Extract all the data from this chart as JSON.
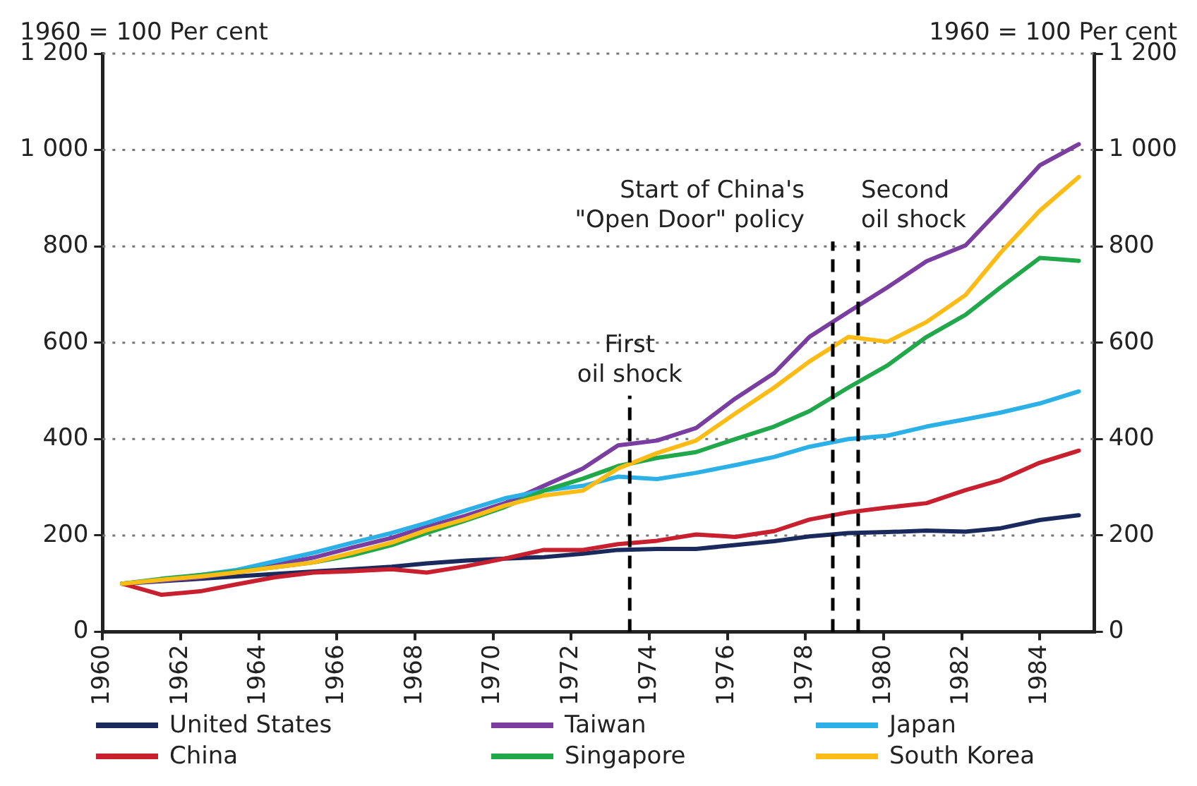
{
  "chart_data": {
    "type": "line",
    "ylabel": "1960 = 100 Per cent",
    "y2label": "1960 = 100 Per cent",
    "x": [
      1960.5,
      1961.5,
      1962.5,
      1963.4,
      1964.4,
      1965.4,
      1966.4,
      1967.4,
      1968.3,
      1969.3,
      1970.3,
      1971.3,
      1972.3,
      1973.2,
      1974.2,
      1975.2,
      1976.2,
      1977.2,
      1978.1,
      1979.1,
      1980.1,
      1981.1,
      1982.1,
      1983.0,
      1984.0,
      1985.0
    ],
    "series": [
      {
        "name": "United States",
        "color": "#1b2a5c",
        "values": [
          100,
          105,
          110,
          115,
          120,
          125,
          130,
          135,
          142,
          148,
          152,
          155,
          162,
          170,
          172,
          172,
          180,
          188,
          198,
          205,
          207,
          210,
          208,
          215,
          232,
          242
        ]
      },
      {
        "name": "Taiwan",
        "color": "#7a3ea1",
        "values": [
          100,
          106,
          113,
          123,
          139,
          154,
          175,
          195,
          218,
          241,
          267,
          303,
          339,
          387,
          397,
          423,
          484,
          537,
          612,
          664,
          715,
          769,
          802,
          879,
          968,
          1012
        ]
      },
      {
        "name": "Japan",
        "color": "#2cb0e8",
        "values": [
          100,
          108,
          118,
          128,
          146,
          164,
          185,
          205,
          226,
          252,
          277,
          293,
          303,
          322,
          317,
          330,
          346,
          363,
          384,
          400,
          407,
          426,
          441,
          455,
          474,
          499
        ]
      },
      {
        "name": "China",
        "color": "#c8202f",
        "values": [
          100,
          77,
          84,
          98,
          113,
          123,
          126,
          130,
          123,
          136,
          152,
          170,
          170,
          182,
          189,
          202,
          197,
          209,
          233,
          248,
          258,
          267,
          294,
          315,
          351,
          376
        ]
      },
      {
        "name": "Singapore",
        "color": "#21a84a",
        "values": [
          100,
          110,
          118,
          125,
          134,
          144,
          159,
          180,
          205,
          231,
          259,
          293,
          318,
          344,
          361,
          373,
          400,
          426,
          458,
          507,
          553,
          612,
          658,
          715,
          776,
          770
        ]
      },
      {
        "name": "South Korea",
        "color": "#fdbb16",
        "values": [
          100,
          108,
          115,
          123,
          134,
          144,
          164,
          185,
          211,
          234,
          262,
          283,
          293,
          339,
          371,
          397,
          453,
          507,
          561,
          612,
          602,
          643,
          699,
          787,
          874,
          944
        ]
      }
    ],
    "xlim": [
      1960,
      1985.4
    ],
    "xticks": [
      1960,
      1962,
      1964,
      1966,
      1968,
      1970,
      1972,
      1974,
      1976,
      1978,
      1980,
      1982,
      1984
    ],
    "ylim": [
      0,
      1200
    ],
    "yticks": [
      0,
      200,
      400,
      600,
      800,
      {
        "value": 1000,
        "label": "1 000"
      },
      {
        "value": 1200,
        "label": "1 200"
      }
    ],
    "y2lim": [
      0,
      1200
    ],
    "y2ticks": [
      0,
      200,
      400,
      600,
      800,
      {
        "value": 1000,
        "label": "1 000"
      },
      {
        "value": 1200,
        "label": "1 200"
      }
    ],
    "ref_lines": [
      {
        "axis": "x",
        "value": 1973.5,
        "label": "First oil shock",
        "line_style": "dashed",
        "color": "#000000"
      },
      {
        "axis": "x",
        "value": 1978.7,
        "label": "Start of China's \"Open Door\" policy",
        "line_style": "dashed",
        "color": "#000000"
      },
      {
        "axis": "x",
        "value": 1979.35,
        "label": "Second oil shock",
        "line_style": "dashed",
        "color": "#000000"
      }
    ],
    "grid": "y",
    "legend": "bottom",
    "marker": "none",
    "line_style": "solid"
  }
}
